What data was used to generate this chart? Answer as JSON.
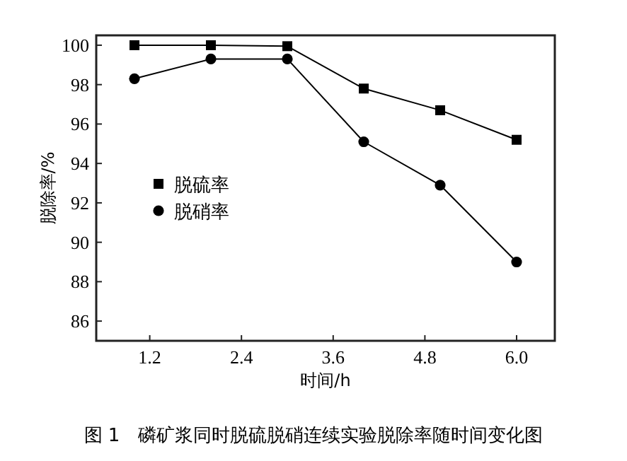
{
  "chart_data": {
    "type": "line",
    "title": "图 1　磷矿浆同时脱硫脱硝连续实验脱除率随时间变化图",
    "xlabel": "时间/h",
    "ylabel": "脱除率/%",
    "x": [
      1,
      2,
      3,
      4,
      5,
      6
    ],
    "series": [
      {
        "name": "脱硫率",
        "color": "#000000",
        "marker": "square",
        "values": [
          100,
          100,
          99.95,
          97.8,
          96.7,
          95.2
        ]
      },
      {
        "name": "脱硝率",
        "color": "#000000",
        "marker": "circle",
        "values": [
          98.3,
          99.3,
          99.3,
          95.1,
          92.9,
          89.0
        ]
      }
    ],
    "xlim": [
      0.5,
      6.5
    ],
    "xticks": [
      {
        "value": 1.2,
        "label": "1.2"
      },
      {
        "value": 2.4,
        "label": "2.4"
      },
      {
        "value": 3.6,
        "label": "3.6"
      },
      {
        "value": 4.8,
        "label": "4.8"
      },
      {
        "value": 6,
        "label": "6.0"
      }
    ],
    "ylim": [
      85,
      100.5
    ],
    "yticks": [
      86,
      88,
      90,
      92,
      94,
      96,
      98,
      100
    ],
    "legend": "left",
    "grid": false,
    "line_style": "solid"
  }
}
